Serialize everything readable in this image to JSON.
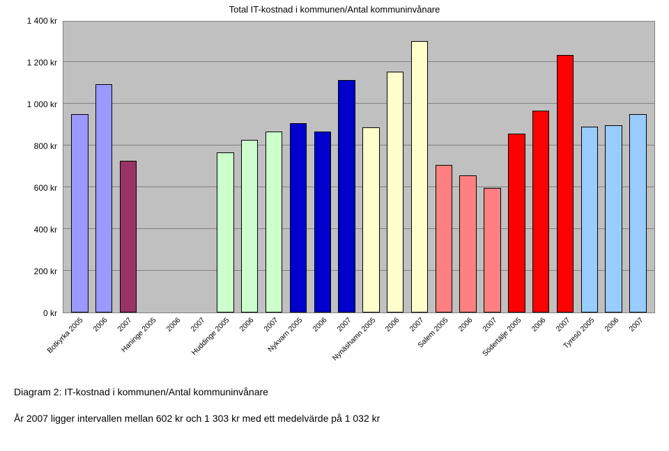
{
  "chart": {
    "type": "bar",
    "title": "Total IT-kostnad i kommunen/Antal kommuninvånare",
    "background_color": "#c0c0c0",
    "grid_color": "#808080",
    "border_color": "#000000",
    "y": {
      "min": 0,
      "max": 1400,
      "step": 200,
      "ticks": [
        {
          "v": 0,
          "label": "0 kr"
        },
        {
          "v": 200,
          "label": "200 kr"
        },
        {
          "v": 400,
          "label": "400 kr"
        },
        {
          "v": 600,
          "label": "600 kr"
        },
        {
          "v": 800,
          "label": "800 kr"
        },
        {
          "v": 1000,
          "label": "1 000 kr"
        },
        {
          "v": 1200,
          "label": "1 200 kr"
        },
        {
          "v": 1400,
          "label": "1 400 kr"
        }
      ]
    },
    "bars": [
      {
        "label": "Botkyrka 2005",
        "value": 955,
        "fill": "#9999ff"
      },
      {
        "label": "2006",
        "value": 1100,
        "fill": "#9999ff"
      },
      {
        "label": "2007",
        "value": 730,
        "fill": "#993366"
      },
      {
        "label": "Haninge 2005",
        "value": 0,
        "fill": "#ffffcc"
      },
      {
        "label": "2006",
        "value": 0,
        "fill": "#ffffcc"
      },
      {
        "label": "2007",
        "value": 0,
        "fill": "#ffffcc"
      },
      {
        "label": "Huddinge 2005",
        "value": 770,
        "fill": "#ccffcc"
      },
      {
        "label": "2006",
        "value": 830,
        "fill": "#ccffcc"
      },
      {
        "label": "2007",
        "value": 870,
        "fill": "#ccffcc"
      },
      {
        "label": "Nykvarn 2005",
        "value": 910,
        "fill": "#0000cc"
      },
      {
        "label": "2006",
        "value": 870,
        "fill": "#0000cc"
      },
      {
        "label": "2007",
        "value": 1120,
        "fill": "#0000cc"
      },
      {
        "label": "Nynäshamn 2005",
        "value": 890,
        "fill": "#ffffcc"
      },
      {
        "label": "2006",
        "value": 1160,
        "fill": "#ffffcc"
      },
      {
        "label": "2007",
        "value": 1305,
        "fill": "#ffffcc"
      },
      {
        "label": "Salem 2005",
        "value": 710,
        "fill": "#ff8080"
      },
      {
        "label": "2006",
        "value": 660,
        "fill": "#ff8080"
      },
      {
        "label": "2007",
        "value": 600,
        "fill": "#ff8080"
      },
      {
        "label": "Södertälje 2005",
        "value": 860,
        "fill": "#ff0000"
      },
      {
        "label": "2006",
        "value": 970,
        "fill": "#ff0000"
      },
      {
        "label": "2007",
        "value": 1240,
        "fill": "#ff0000"
      },
      {
        "label": "Tyresö 2005",
        "value": 895,
        "fill": "#99ccff"
      },
      {
        "label": "2006",
        "value": 900,
        "fill": "#99ccff"
      },
      {
        "label": "2007",
        "value": 955,
        "fill": "#99ccff"
      }
    ]
  },
  "caption1": "Diagram 2: IT-kostnad i kommunen/Antal kommuninvånare",
  "caption2": "År 2007 ligger intervallen mellan 602 kr och 1 303 kr med ett medelvärde på 1 032 kr"
}
